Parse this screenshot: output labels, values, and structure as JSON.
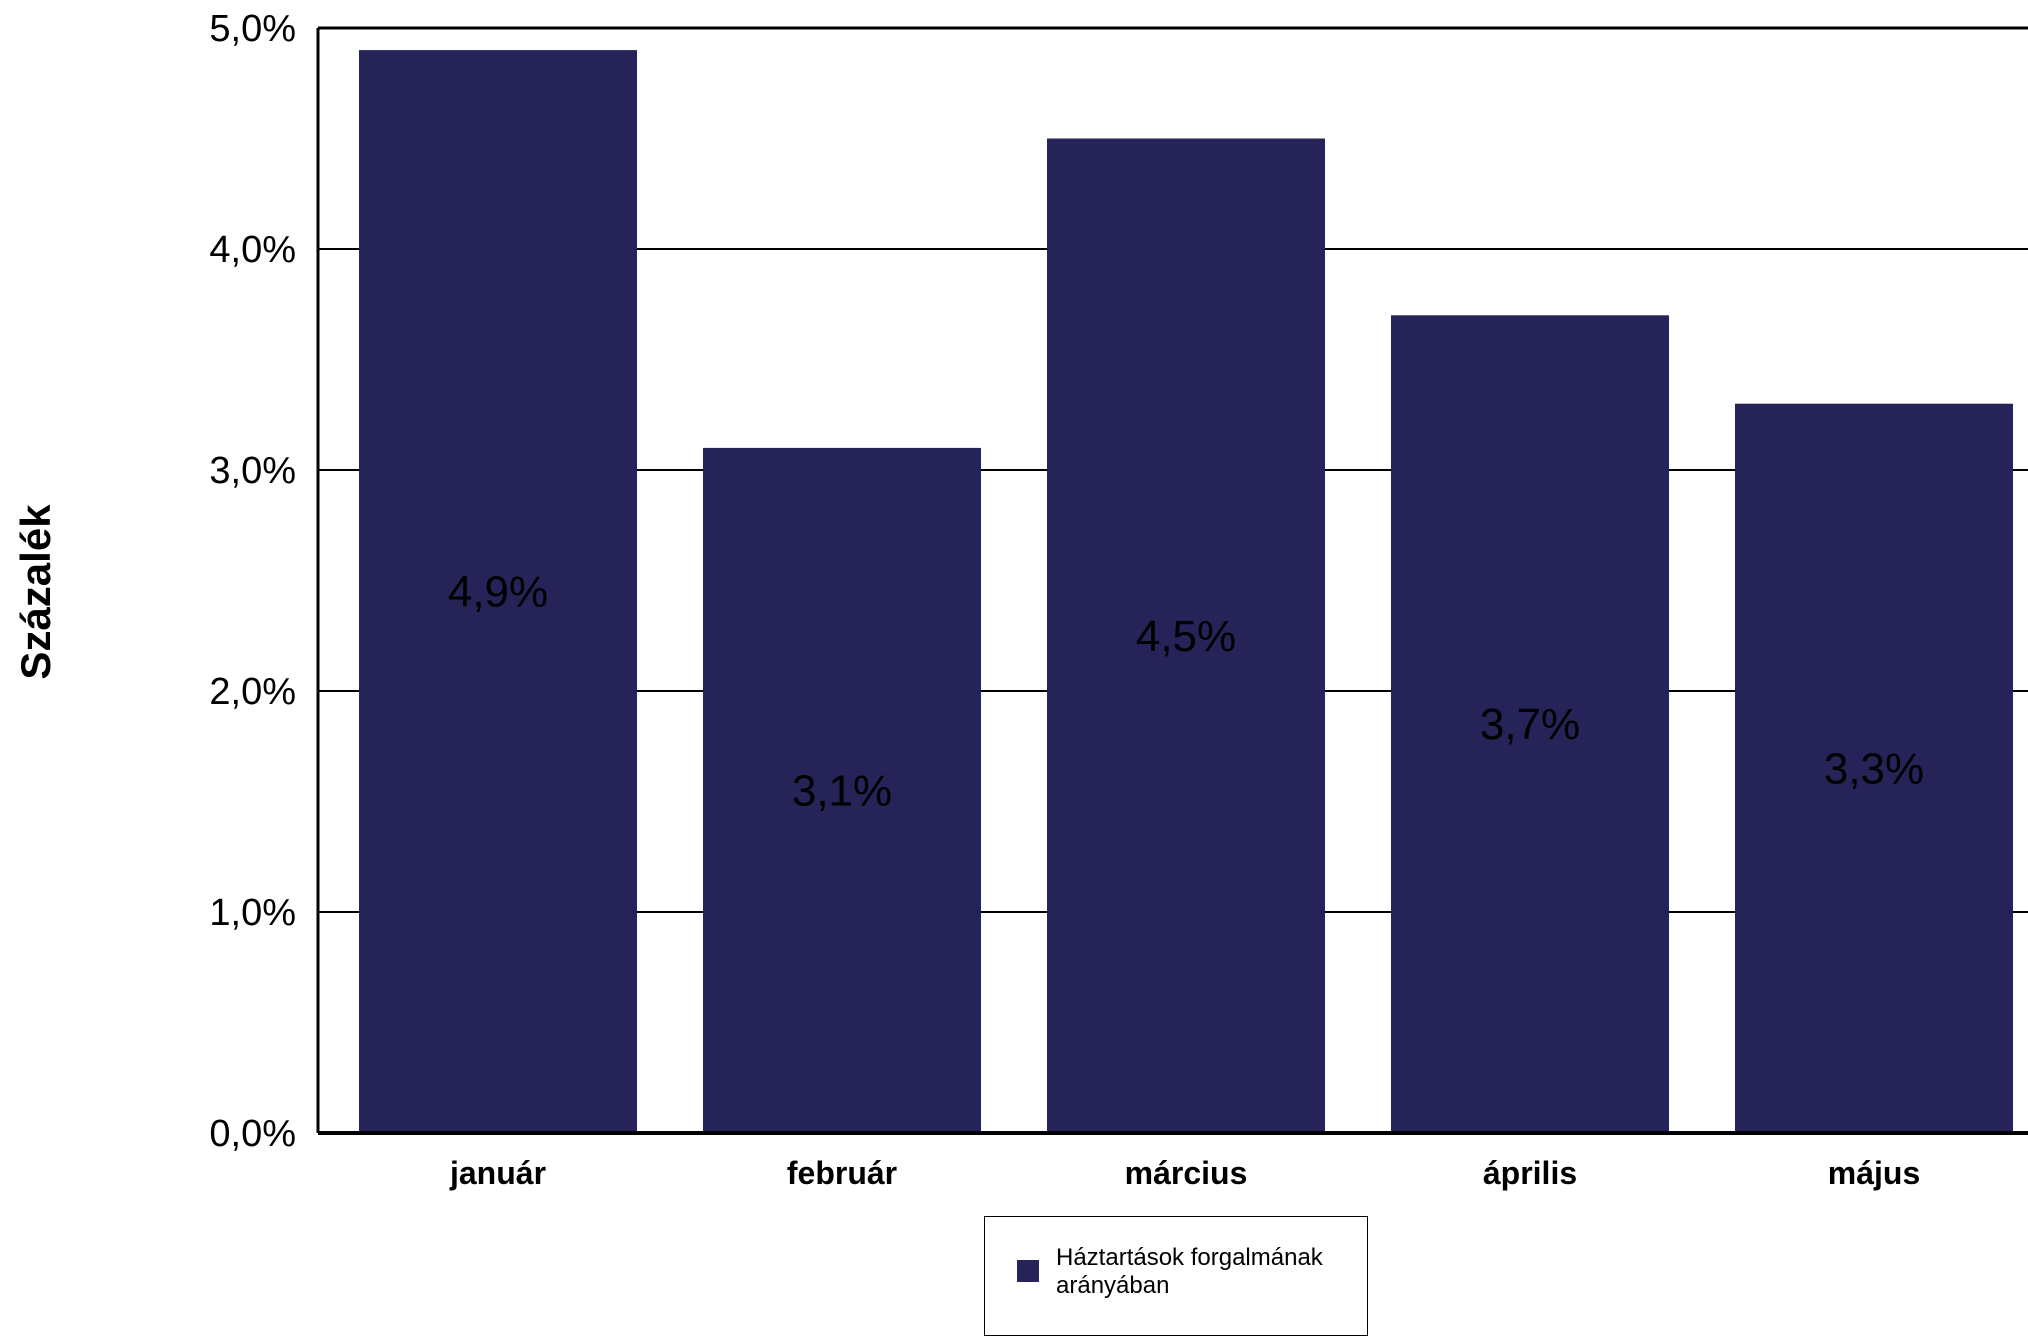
{
  "chart_data": {
    "type": "bar",
    "ylabel": "Százalék",
    "categories": [
      "január",
      "február",
      "március",
      "április",
      "május"
    ],
    "series": [
      {
        "name": "Háztartások forgalmának arányában",
        "values": [
          4.9,
          3.1,
          4.5,
          3.7,
          3.3
        ],
        "labels": [
          "4,9%",
          "3,1%",
          "4,5%",
          "3,7%",
          "3,3%"
        ],
        "color": "#252357"
      }
    ],
    "ylim": [
      0,
      5
    ],
    "yticks": [
      {
        "value": 0,
        "label": "0,0%"
      },
      {
        "value": 1,
        "label": "1,0%"
      },
      {
        "value": 2,
        "label": "2,0%"
      },
      {
        "value": 3,
        "label": "3,0%"
      },
      {
        "value": 4,
        "label": "4,0%"
      },
      {
        "value": 5,
        "label": "5,0%"
      }
    ],
    "grid": true,
    "legend_position": "bottom"
  }
}
